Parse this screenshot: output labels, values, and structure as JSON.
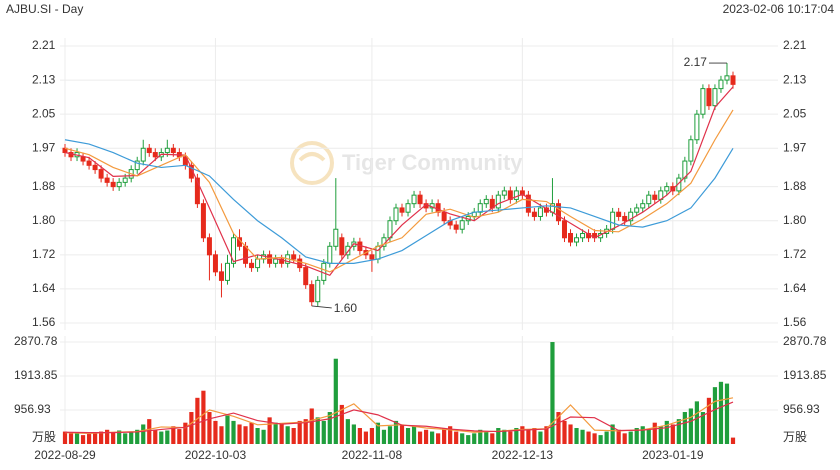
{
  "chart_data": {
    "type": "candlestick",
    "title": "AJBU.SI - Day",
    "timestamp": "2023-02-06 10:17:04",
    "watermark": "Tiger Community",
    "categories": [
      "2022-08-29",
      null,
      null,
      null,
      null,
      null,
      null,
      null,
      null,
      null,
      null,
      null,
      null,
      null,
      null,
      null,
      null,
      null,
      null,
      null,
      null,
      null,
      null,
      null,
      null,
      "2022-10-03",
      null,
      null,
      null,
      null,
      null,
      null,
      null,
      null,
      null,
      null,
      null,
      null,
      null,
      null,
      null,
      null,
      null,
      null,
      null,
      null,
      null,
      null,
      null,
      null,
      null,
      "2022-11-08",
      null,
      null,
      null,
      null,
      null,
      null,
      null,
      null,
      null,
      null,
      null,
      null,
      null,
      null,
      null,
      null,
      null,
      null,
      null,
      null,
      null,
      null,
      null,
      null,
      "2022-12-13",
      null,
      null,
      null,
      null,
      null,
      null,
      null,
      null,
      null,
      null,
      null,
      null,
      null,
      null,
      null,
      null,
      null,
      null,
      null,
      null,
      null,
      null,
      null,
      null,
      "2023-01-19",
      null,
      null,
      null,
      null,
      null,
      null,
      null,
      null,
      null,
      null
    ],
    "open": [
      1.97,
      1.96,
      1.95,
      1.95,
      1.94,
      1.93,
      1.92,
      1.9,
      1.89,
      1.88,
      1.89,
      1.9,
      1.92,
      1.94,
      1.97,
      1.96,
      1.95,
      1.96,
      1.97,
      1.96,
      1.95,
      1.93,
      1.9,
      1.84,
      1.76,
      1.72,
      1.68,
      1.66,
      1.7,
      1.76,
      1.74,
      1.7,
      1.69,
      1.71,
      1.72,
      1.7,
      1.71,
      1.7,
      1.72,
      1.71,
      1.69,
      1.65,
      1.61,
      1.66,
      1.7,
      1.74,
      1.76,
      1.72,
      1.74,
      1.75,
      1.73,
      1.72,
      1.71,
      1.74,
      1.76,
      1.8,
      1.83,
      1.82,
      1.84,
      1.86,
      1.84,
      1.83,
      1.84,
      1.82,
      1.8,
      1.79,
      1.78,
      1.8,
      1.81,
      1.82,
      1.84,
      1.85,
      1.83,
      1.86,
      1.87,
      1.85,
      1.87,
      1.86,
      1.82,
      1.81,
      1.83,
      1.82,
      1.84,
      1.8,
      1.77,
      1.75,
      1.76,
      1.77,
      1.77,
      1.76,
      1.77,
      1.78,
      1.82,
      1.81,
      1.8,
      1.82,
      1.83,
      1.84,
      1.86,
      1.85,
      1.87,
      1.88,
      1.87,
      1.9,
      1.94,
      1.99,
      2.05,
      2.11,
      2.07,
      2.11,
      2.13,
      2.14
    ],
    "high": [
      1.98,
      1.97,
      1.97,
      1.96,
      1.95,
      1.94,
      1.93,
      1.91,
      1.9,
      1.9,
      1.91,
      1.93,
      1.95,
      1.99,
      1.98,
      1.97,
      1.97,
      1.99,
      1.98,
      1.97,
      1.96,
      1.94,
      1.91,
      1.85,
      1.77,
      1.73,
      1.7,
      1.72,
      1.77,
      1.78,
      1.75,
      1.71,
      1.72,
      1.73,
      1.73,
      1.72,
      1.72,
      1.73,
      1.73,
      1.72,
      1.7,
      1.66,
      1.67,
      1.71,
      1.75,
      1.9,
      1.77,
      1.75,
      1.76,
      1.76,
      1.74,
      1.73,
      1.75,
      1.77,
      1.81,
      1.84,
      1.84,
      1.85,
      1.87,
      1.87,
      1.85,
      1.85,
      1.85,
      1.83,
      1.81,
      1.8,
      1.81,
      1.82,
      1.83,
      1.85,
      1.86,
      1.86,
      1.87,
      1.88,
      1.88,
      1.88,
      1.88,
      1.87,
      1.83,
      1.84,
      1.84,
      1.9,
      1.85,
      1.81,
      1.78,
      1.77,
      1.78,
      1.78,
      1.78,
      1.78,
      1.79,
      1.83,
      1.83,
      1.82,
      1.83,
      1.84,
      1.85,
      1.87,
      1.87,
      1.88,
      1.89,
      1.89,
      1.91,
      1.95,
      2.0,
      2.06,
      2.12,
      2.12,
      2.12,
      2.14,
      2.17,
      2.15
    ],
    "low": [
      1.95,
      1.94,
      1.94,
      1.93,
      1.92,
      1.91,
      1.89,
      1.88,
      1.87,
      1.87,
      1.88,
      1.89,
      1.91,
      1.93,
      1.95,
      1.94,
      1.94,
      1.95,
      1.95,
      1.94,
      1.92,
      1.89,
      1.83,
      1.75,
      1.66,
      1.67,
      1.62,
      1.65,
      1.69,
      1.73,
      1.69,
      1.68,
      1.68,
      1.7,
      1.69,
      1.69,
      1.69,
      1.69,
      1.7,
      1.68,
      1.64,
      1.6,
      1.6,
      1.65,
      1.69,
      1.73,
      1.71,
      1.71,
      1.73,
      1.72,
      1.71,
      1.68,
      1.7,
      1.73,
      1.75,
      1.79,
      1.81,
      1.81,
      1.83,
      1.83,
      1.82,
      1.82,
      1.81,
      1.79,
      1.78,
      1.77,
      1.77,
      1.79,
      1.8,
      1.81,
      1.83,
      1.82,
      1.82,
      1.85,
      1.84,
      1.84,
      1.85,
      1.81,
      1.8,
      1.8,
      1.81,
      1.81,
      1.79,
      1.75,
      1.74,
      1.74,
      1.75,
      1.75,
      1.75,
      1.75,
      1.76,
      1.77,
      1.8,
      1.79,
      1.79,
      1.81,
      1.82,
      1.83,
      1.84,
      1.84,
      1.86,
      1.86,
      1.86,
      1.89,
      1.93,
      1.98,
      2.04,
      2.06,
      2.06,
      2.1,
      2.12,
      2.11
    ],
    "close": [
      1.96,
      1.95,
      1.96,
      1.94,
      1.93,
      1.92,
      1.9,
      1.89,
      1.88,
      1.89,
      1.9,
      1.92,
      1.94,
      1.97,
      1.96,
      1.95,
      1.96,
      1.97,
      1.96,
      1.95,
      1.93,
      1.9,
      1.84,
      1.76,
      1.72,
      1.68,
      1.66,
      1.7,
      1.76,
      1.74,
      1.7,
      1.69,
      1.71,
      1.72,
      1.7,
      1.71,
      1.7,
      1.72,
      1.71,
      1.69,
      1.65,
      1.61,
      1.66,
      1.7,
      1.74,
      1.78,
      1.72,
      1.74,
      1.75,
      1.73,
      1.72,
      1.71,
      1.74,
      1.76,
      1.8,
      1.83,
      1.82,
      1.84,
      1.86,
      1.84,
      1.83,
      1.84,
      1.82,
      1.8,
      1.79,
      1.78,
      1.8,
      1.81,
      1.82,
      1.84,
      1.85,
      1.83,
      1.86,
      1.87,
      1.85,
      1.87,
      1.86,
      1.82,
      1.81,
      1.83,
      1.82,
      1.84,
      1.8,
      1.76,
      1.75,
      1.76,
      1.77,
      1.76,
      1.76,
      1.77,
      1.78,
      1.82,
      1.81,
      1.8,
      1.82,
      1.83,
      1.84,
      1.86,
      1.85,
      1.87,
      1.88,
      1.87,
      1.9,
      1.94,
      1.99,
      2.05,
      2.11,
      2.07,
      2.11,
      2.13,
      2.14,
      2.12
    ],
    "up_color": "#1f9e3c",
    "down_color": "#e62a1c",
    "ylim": [
      1.56,
      2.21
    ],
    "yticks": [
      1.56,
      1.64,
      1.72,
      {
        "value": 1.8,
        "label": "1.80"
      },
      1.88,
      1.97,
      2.05,
      2.13,
      2.21
    ],
    "grid": true,
    "annotations": [
      {
        "label": "2.17",
        "value": 2.17
      },
      {
        "label": "1.60",
        "value": 1.6
      }
    ],
    "series": [
      {
        "color": "#e0314a",
        "x": [
          0,
          4,
          8,
          12,
          16,
          20,
          24,
          28,
          32,
          36,
          40,
          44,
          48,
          52,
          56,
          60,
          64,
          68,
          72,
          76,
          80,
          84,
          88,
          92,
          96,
          100,
          104,
          108,
          111
        ],
        "values": [
          1.96,
          1.948,
          1.904,
          1.906,
          1.956,
          1.954,
          1.83,
          1.704,
          1.72,
          1.708,
          1.694,
          1.672,
          1.746,
          1.73,
          1.79,
          1.838,
          1.816,
          1.8,
          1.84,
          1.862,
          1.828,
          1.794,
          1.76,
          1.788,
          1.82,
          1.86,
          1.916,
          2.066,
          2.114
        ]
      },
      {
        "color": "#f39a3e",
        "x": [
          0,
          4,
          8,
          12,
          16,
          20,
          24,
          28,
          32,
          36,
          40,
          44,
          48,
          52,
          56,
          60,
          64,
          68,
          72,
          76,
          80,
          84,
          88,
          92,
          96,
          100,
          104,
          108,
          111
        ],
        "values": [
          1.97,
          1.955,
          1.925,
          1.905,
          1.93,
          1.955,
          1.89,
          1.77,
          1.71,
          1.714,
          1.7,
          1.68,
          1.71,
          1.74,
          1.76,
          1.815,
          1.827,
          1.808,
          1.82,
          1.85,
          1.845,
          1.81,
          1.777,
          1.774,
          1.804,
          1.84,
          1.888,
          1.99,
          2.06
        ]
      },
      {
        "color": "#3d9bd8",
        "x": [
          0,
          4,
          8,
          12,
          16,
          20,
          24,
          28,
          32,
          36,
          40,
          44,
          48,
          52,
          56,
          60,
          64,
          68,
          72,
          76,
          80,
          84,
          88,
          92,
          96,
          100,
          104,
          108,
          111
        ],
        "values": [
          1.99,
          1.98,
          1.96,
          1.935,
          1.925,
          1.93,
          1.905,
          1.85,
          1.8,
          1.76,
          1.715,
          1.7,
          1.7,
          1.71,
          1.73,
          1.765,
          1.8,
          1.82,
          1.825,
          1.83,
          1.835,
          1.83,
          1.81,
          1.79,
          1.785,
          1.8,
          1.83,
          1.9,
          1.97
        ]
      }
    ],
    "volume": {
      "label": "万股",
      "values": [
        350,
        300,
        320,
        250,
        280,
        300,
        350,
        400,
        320,
        380,
        300,
        350,
        400,
        550,
        700,
        400,
        350,
        380,
        500,
        420,
        600,
        900,
        1300,
        1500,
        900,
        650,
        500,
        800,
        650,
        550,
        500,
        600,
        450,
        400,
        750,
        600,
        550,
        500,
        450,
        650,
        700,
        1000,
        750,
        650,
        900,
        2400,
        1100,
        700,
        550,
        450,
        350,
        450,
        600,
        400,
        500,
        650,
        550,
        450,
        500,
        350,
        400,
        350,
        300,
        450,
        500,
        350,
        300,
        250,
        300,
        400,
        350,
        300,
        450,
        400,
        350,
        450,
        500,
        400,
        450,
        350,
        500,
        2870,
        900,
        650,
        550,
        450,
        400,
        350,
        300,
        250,
        350,
        550,
        400,
        300,
        350,
        450,
        500,
        400,
        600,
        500,
        650,
        550,
        700,
        900,
        1000,
        1200,
        900,
        1300,
        1600,
        1750,
        1700,
        180
      ],
      "ylim": [
        0,
        2870.78
      ],
      "yticks": [
        956.93,
        1913.85,
        2870.78
      ],
      "series": [
        {
          "color": "#f39a3e",
          "x": [
            0,
            4,
            8,
            12,
            16,
            20,
            24,
            28,
            32,
            36,
            40,
            44,
            48,
            52,
            56,
            60,
            64,
            68,
            72,
            76,
            80,
            84,
            88,
            92,
            96,
            100,
            104,
            108,
            111
          ],
          "values": [
            320,
            300,
            330,
            350,
            480,
            460,
            960,
            780,
            540,
            580,
            620,
            800,
            1130,
            510,
            540,
            450,
            400,
            330,
            360,
            410,
            430,
            1100,
            390,
            370,
            400,
            530,
            750,
            1200,
            1300
          ]
        },
        {
          "color": "#e0314a",
          "x": [
            0,
            4,
            8,
            12,
            16,
            20,
            24,
            28,
            32,
            36,
            40,
            44,
            48,
            52,
            56,
            60,
            64,
            68,
            72,
            76,
            80,
            84,
            88,
            92,
            96,
            100,
            104,
            108,
            111
          ],
          "values": [
            330,
            320,
            320,
            340,
            410,
            470,
            710,
            870,
            660,
            560,
            600,
            710,
            960,
            820,
            530,
            500,
            420,
            370,
            350,
            390,
            420,
            760,
            740,
            380,
            390,
            460,
            640,
            970,
            1180
          ]
        }
      ]
    }
  }
}
